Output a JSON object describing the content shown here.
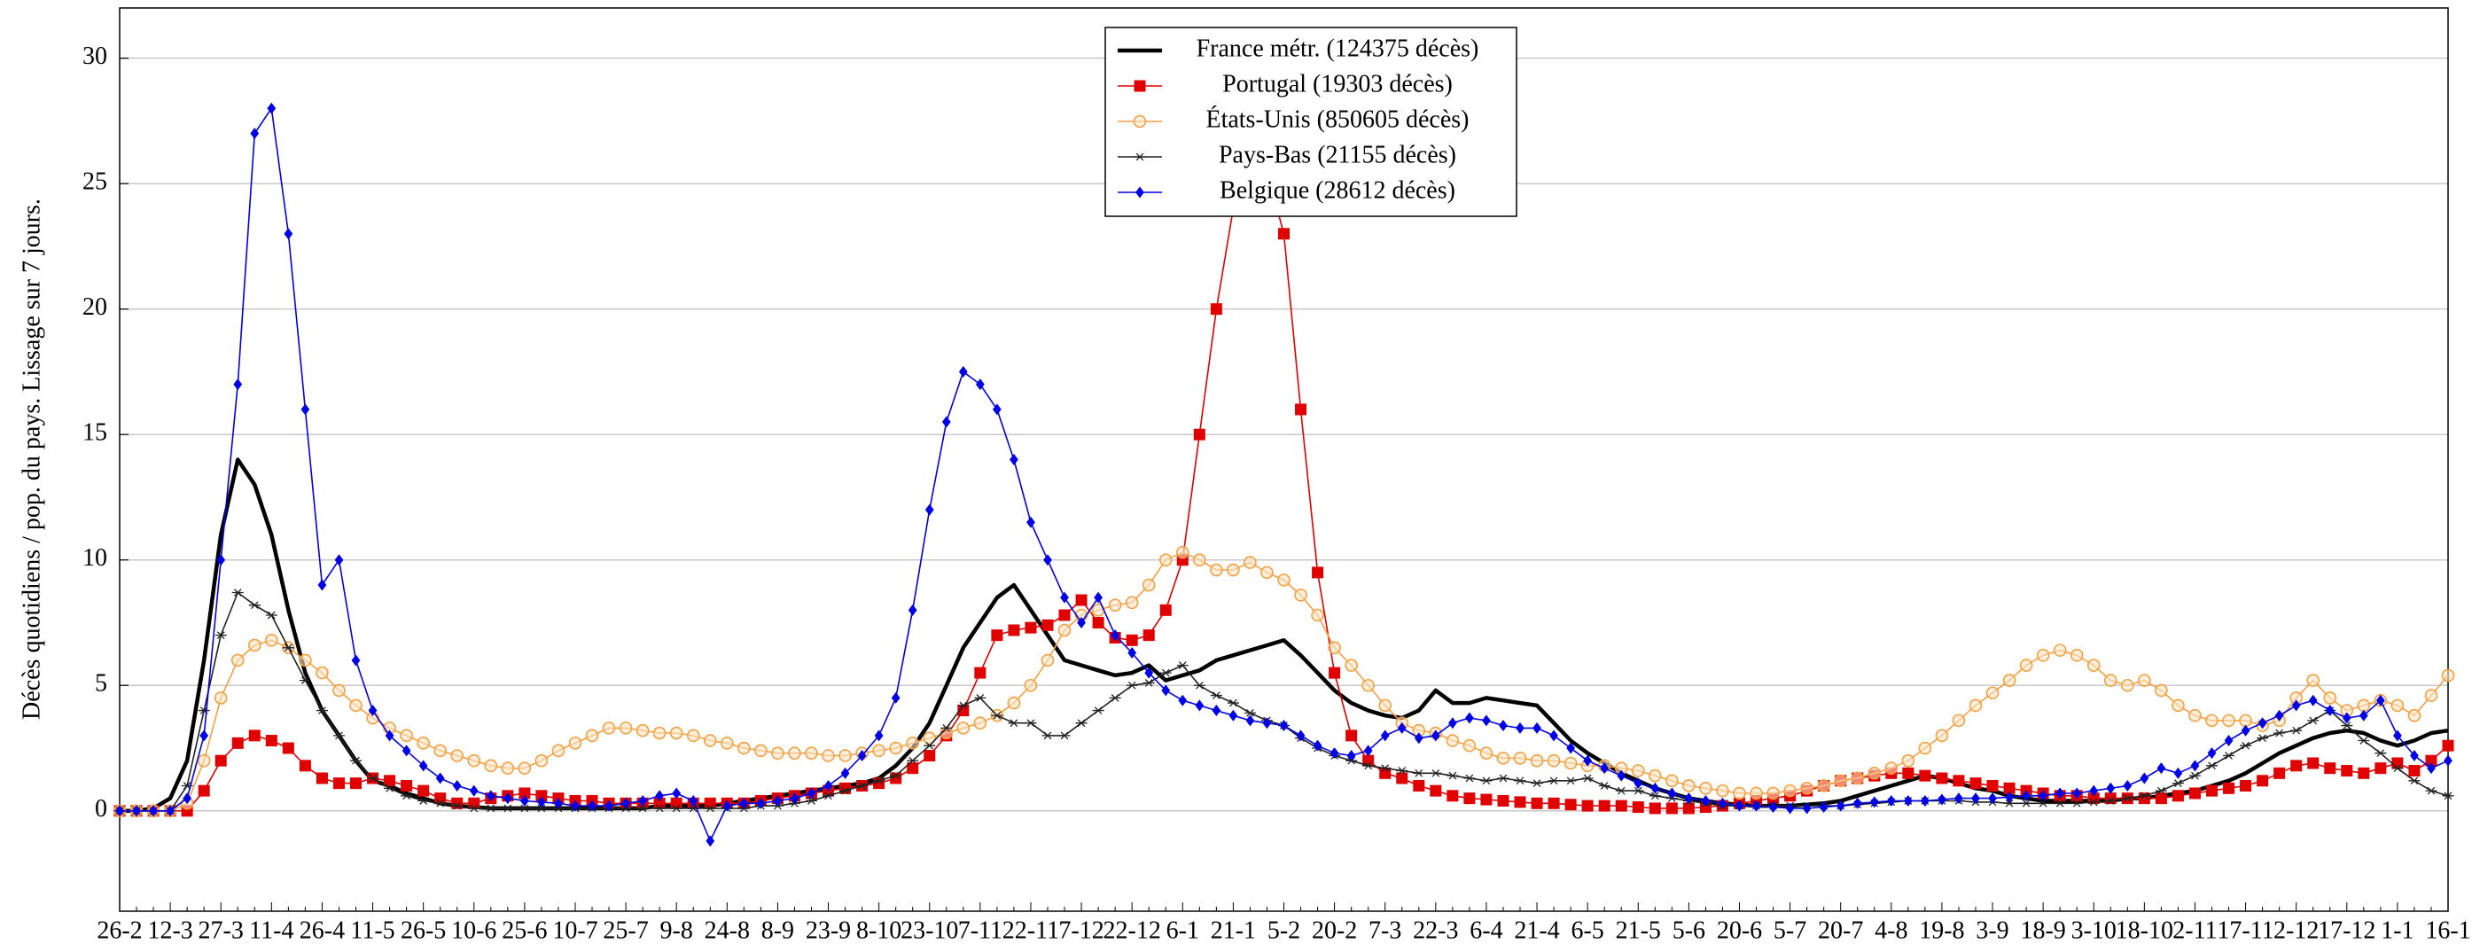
{
  "chart_data": {
    "type": "line",
    "ylabel": "Décès quotidiens / pop. du pays. Lissage sur 7 jours.",
    "categories": [
      "26-2",
      null,
      null,
      "12-3",
      null,
      null,
      "27-3",
      null,
      null,
      "11-4",
      null,
      null,
      "26-4",
      null,
      null,
      "11-5",
      null,
      null,
      "26-5",
      null,
      null,
      "10-6",
      null,
      null,
      "25-6",
      null,
      null,
      "10-7",
      null,
      null,
      "25-7",
      null,
      null,
      "9-8",
      null,
      null,
      "24-8",
      null,
      null,
      "8-9",
      null,
      null,
      "23-9",
      null,
      null,
      "8-10",
      null,
      null,
      "23-10",
      null,
      null,
      "7-11",
      null,
      null,
      "22-11",
      null,
      null,
      "7-12",
      null,
      null,
      "22-12",
      null,
      null,
      "6-1",
      null,
      null,
      "21-1",
      null,
      null,
      "5-2",
      null,
      null,
      "20-2",
      null,
      null,
      "7-3",
      null,
      null,
      "22-3",
      null,
      null,
      "6-4",
      null,
      null,
      "21-4",
      null,
      null,
      "6-5",
      null,
      null,
      "21-5",
      null,
      null,
      "5-6",
      null,
      null,
      "20-6",
      null,
      null,
      "5-7",
      null,
      null,
      "20-7",
      null,
      null,
      "4-8",
      null,
      null,
      "19-8",
      null,
      null,
      "3-9",
      null,
      null,
      "18-9",
      null,
      null,
      "3-10",
      null,
      null,
      "18-10",
      null,
      null,
      "2-11",
      null,
      null,
      "17-11",
      null,
      null,
      "2-12",
      null,
      null,
      "17-12",
      null,
      null,
      "1-1",
      null,
      null,
      "16-1"
    ],
    "series": [
      {
        "name": "France métr. (124375 décès)",
        "color": "#000000",
        "marker": "none",
        "values": [
          0,
          0,
          0.1,
          0.5,
          2,
          6,
          11,
          14,
          13,
          11,
          8,
          5.5,
          4,
          3,
          2,
          1.2,
          1,
          0.7,
          0.5,
          0.3,
          0.2,
          0.15,
          0.1,
          0.1,
          0.1,
          0.1,
          0.1,
          0.1,
          0.1,
          0.1,
          0.1,
          0.1,
          0.2,
          0.2,
          0.2,
          0.2,
          0.3,
          0.4,
          0.5,
          0.6,
          0.7,
          0.8,
          0.9,
          1.0,
          1.1,
          1.3,
          1.8,
          2.5,
          3.5,
          5,
          6.5,
          7.5,
          8.5,
          9,
          8,
          7,
          6,
          5.8,
          5.6,
          5.4,
          5.5,
          5.8,
          5.2,
          5.4,
          5.6,
          6,
          6.2,
          6.4,
          6.6,
          6.8,
          6.2,
          5.5,
          4.8,
          4.3,
          4,
          3.8,
          3.7,
          4,
          4.8,
          4.3,
          4.3,
          4.5,
          4.4,
          4.3,
          4.2,
          3.5,
          2.8,
          2.3,
          1.9,
          1.5,
          1.2,
          0.9,
          0.7,
          0.5,
          0.4,
          0.3,
          0.25,
          0.2,
          0.2,
          0.2,
          0.25,
          0.3,
          0.4,
          0.6,
          0.8,
          1.0,
          1.2,
          1.4,
          1.3,
          1.1,
          0.9,
          0.8,
          0.6,
          0.5,
          0.4,
          0.4,
          0.4,
          0.4,
          0.4,
          0.5,
          0.5,
          0.6,
          0.7,
          0.8,
          1.0,
          1.2,
          1.5,
          1.9,
          2.3,
          2.6,
          2.9,
          3.1,
          3.2,
          3.1,
          2.8,
          2.6,
          2.8,
          3.1,
          3.2
        ]
      },
      {
        "name": "Portugal (19303 décès)",
        "color": "#e00000",
        "marker": "square",
        "values": [
          0,
          0,
          0,
          0,
          0,
          0.8,
          2,
          2.7,
          3,
          2.8,
          2.5,
          1.8,
          1.3,
          1.1,
          1.1,
          1.3,
          1.2,
          1.0,
          0.8,
          0.5,
          0.3,
          0.3,
          0.5,
          0.6,
          0.7,
          0.6,
          0.5,
          0.4,
          0.4,
          0.3,
          0.3,
          0.3,
          0.3,
          0.3,
          0.3,
          0.3,
          0.3,
          0.3,
          0.4,
          0.5,
          0.6,
          0.7,
          0.8,
          0.9,
          1.0,
          1.1,
          1.3,
          1.7,
          2.2,
          3,
          4,
          5.5,
          7,
          7.2,
          7.3,
          7.4,
          7.8,
          8.4,
          7.5,
          6.9,
          6.8,
          7,
          8,
          10,
          15,
          20,
          24,
          26,
          25.5,
          23,
          16,
          9.5,
          5.5,
          3,
          2,
          1.5,
          1.3,
          1,
          0.8,
          0.6,
          0.5,
          0.45,
          0.4,
          0.35,
          0.3,
          0.3,
          0.25,
          0.2,
          0.2,
          0.2,
          0.15,
          0.1,
          0.1,
          0.1,
          0.15,
          0.2,
          0.3,
          0.4,
          0.5,
          0.6,
          0.8,
          1.0,
          1.2,
          1.3,
          1.4,
          1.5,
          1.5,
          1.4,
          1.3,
          1.2,
          1.1,
          1.0,
          0.9,
          0.8,
          0.7,
          0.6,
          0.6,
          0.5,
          0.5,
          0.5,
          0.5,
          0.5,
          0.6,
          0.7,
          0.8,
          0.9,
          1.0,
          1.2,
          1.5,
          1.8,
          1.9,
          1.7,
          1.6,
          1.5,
          1.7,
          1.9,
          1.6,
          2.0,
          2.6
        ]
      },
      {
        "name": "États-Unis (850605 décès)",
        "color": "#f5a040",
        "marker": "circle",
        "values": [
          0,
          0,
          0,
          0,
          0.3,
          2,
          4.5,
          6,
          6.6,
          6.8,
          6.5,
          6,
          5.5,
          4.8,
          4.2,
          3.7,
          3.3,
          3,
          2.7,
          2.4,
          2.2,
          2,
          1.8,
          1.7,
          1.7,
          2,
          2.4,
          2.7,
          3,
          3.3,
          3.3,
          3.2,
          3.1,
          3.1,
          3,
          2.8,
          2.7,
          2.5,
          2.4,
          2.3,
          2.3,
          2.3,
          2.2,
          2.2,
          2.3,
          2.4,
          2.5,
          2.7,
          2.9,
          3.1,
          3.3,
          3.5,
          3.8,
          4.3,
          5,
          6,
          7.2,
          7.8,
          8,
          8.2,
          8.3,
          9,
          10,
          10.3,
          10,
          9.6,
          9.6,
          9.9,
          9.5,
          9.2,
          8.6,
          7.8,
          6.5,
          5.8,
          5,
          4.2,
          3.5,
          3.2,
          3.1,
          2.8,
          2.6,
          2.3,
          2.1,
          2.1,
          2,
          2,
          1.9,
          1.8,
          1.8,
          1.7,
          1.6,
          1.4,
          1.2,
          1.0,
          0.9,
          0.8,
          0.7,
          0.7,
          0.7,
          0.8,
          0.9,
          1.0,
          1.2,
          1.3,
          1.5,
          1.7,
          2,
          2.5,
          3,
          3.6,
          4.2,
          4.7,
          5.2,
          5.8,
          6.2,
          6.4,
          6.2,
          5.8,
          5.2,
          5,
          5.2,
          4.8,
          4.2,
          3.8,
          3.6,
          3.6,
          3.6,
          3.4,
          3.6,
          4.5,
          5.2,
          4.5,
          4,
          4.2,
          4.4,
          4.2,
          3.8,
          4.6,
          5.4
        ]
      },
      {
        "name": "Pays-Bas (21155 décès)",
        "color": "#222222",
        "marker": "star",
        "values": [
          0,
          0,
          0,
          0,
          1,
          4,
          7,
          8.7,
          8.2,
          7.8,
          6.5,
          5.2,
          4,
          3,
          2,
          1.3,
          0.9,
          0.6,
          0.4,
          0.3,
          0.2,
          0.1,
          0.1,
          0.1,
          0.1,
          0.1,
          0.1,
          0.1,
          0.1,
          0.1,
          0.1,
          0.1,
          0.1,
          0.1,
          0.1,
          0.1,
          0.1,
          0.1,
          0.2,
          0.2,
          0.3,
          0.4,
          0.6,
          0.8,
          1,
          1.2,
          1.4,
          2,
          2.6,
          3.3,
          4.2,
          4.5,
          3.8,
          3.5,
          3.5,
          3,
          3,
          3.5,
          4,
          4.5,
          5,
          5.1,
          5.5,
          5.8,
          5,
          4.6,
          4.3,
          3.9,
          3.6,
          3.4,
          2.9,
          2.5,
          2.2,
          2,
          1.8,
          1.7,
          1.6,
          1.5,
          1.5,
          1.4,
          1.3,
          1.2,
          1.3,
          1.2,
          1.1,
          1.2,
          1.2,
          1.3,
          1.0,
          0.8,
          0.8,
          0.6,
          0.5,
          0.4,
          0.3,
          0.2,
          0.2,
          0.2,
          0.2,
          0.2,
          0.2,
          0.2,
          0.2,
          0.25,
          0.3,
          0.35,
          0.4,
          0.4,
          0.4,
          0.4,
          0.35,
          0.35,
          0.3,
          0.3,
          0.3,
          0.3,
          0.3,
          0.35,
          0.4,
          0.5,
          0.6,
          0.8,
          1.1,
          1.4,
          1.8,
          2.2,
          2.6,
          2.9,
          3.1,
          3.2,
          3.6,
          4,
          3.4,
          2.8,
          2.3,
          1.7,
          1.2,
          0.8,
          0.6
        ]
      },
      {
        "name": "Belgique (28612 décès)",
        "color": "#0000e6",
        "marker": "diamond",
        "values": [
          0,
          0,
          0,
          0,
          0.5,
          3,
          10,
          17,
          27,
          28,
          23,
          16,
          9,
          10,
          6,
          4,
          3,
          2.4,
          1.8,
          1.3,
          1,
          0.8,
          0.6,
          0.5,
          0.4,
          0.35,
          0.3,
          0.2,
          0.2,
          0.2,
          0.3,
          0.4,
          0.6,
          0.7,
          0.4,
          -1.2,
          0.2,
          0.3,
          0.3,
          0.4,
          0.5,
          0.7,
          1.0,
          1.5,
          2.2,
          3,
          4.5,
          8,
          12,
          15.5,
          17.5,
          17,
          16,
          14,
          11.5,
          10,
          8.5,
          7.5,
          8.5,
          7,
          6.3,
          5.5,
          4.8,
          4.4,
          4.2,
          4,
          3.8,
          3.6,
          3.5,
          3.4,
          3,
          2.6,
          2.3,
          2.2,
          2.4,
          3,
          3.3,
          2.9,
          3,
          3.5,
          3.7,
          3.6,
          3.4,
          3.3,
          3.3,
          3,
          2.5,
          2,
          1.7,
          1.4,
          1.1,
          0.9,
          0.7,
          0.5,
          0.4,
          0.3,
          0.2,
          0.2,
          0.15,
          0.1,
          0.1,
          0.15,
          0.2,
          0.3,
          0.35,
          0.4,
          0.4,
          0.4,
          0.45,
          0.5,
          0.5,
          0.5,
          0.55,
          0.6,
          0.6,
          0.7,
          0.7,
          0.8,
          0.9,
          1,
          1.3,
          1.7,
          1.5,
          1.8,
          2.3,
          2.8,
          3.2,
          3.5,
          3.8,
          4.2,
          4.4,
          4,
          3.7,
          3.8,
          4.4,
          3,
          2.2,
          1.7,
          2
        ]
      }
    ],
    "ylim": [
      -4,
      32
    ],
    "yticks": [
      0,
      5,
      10,
      15,
      20,
      25,
      30
    ],
    "grid": true,
    "legend": "top"
  }
}
